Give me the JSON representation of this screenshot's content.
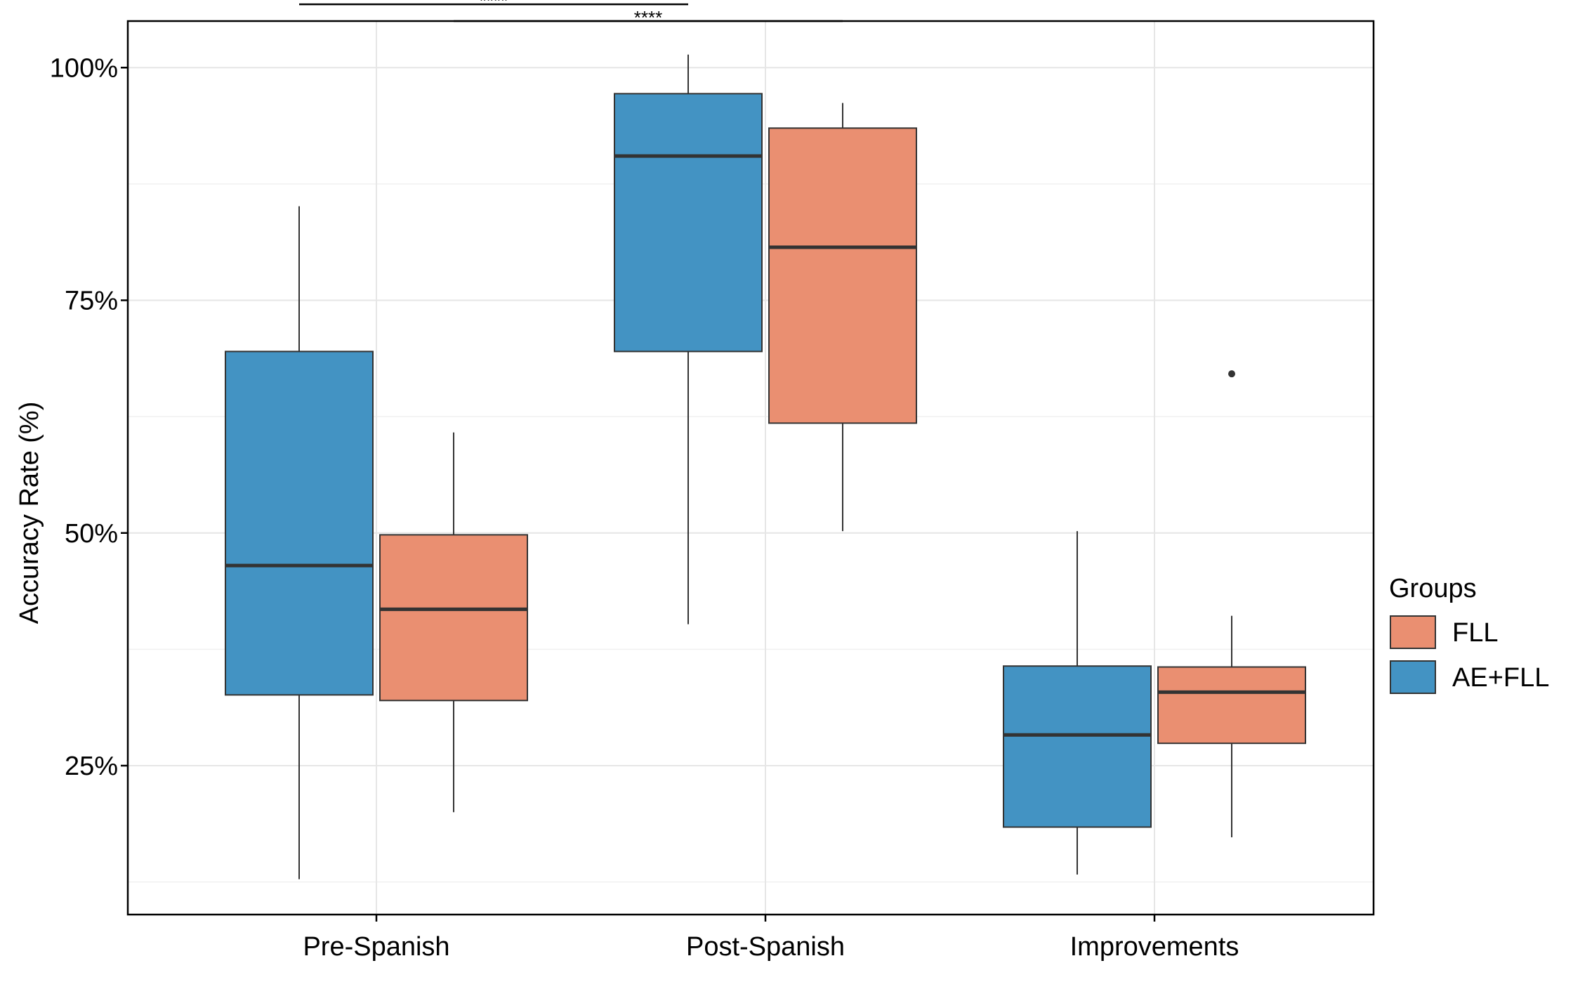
{
  "chart_data": {
    "type": "boxplot",
    "title": "",
    "xlabel": "",
    "ylabel": "Accuracy Rate (%)",
    "ylim": [
      0.09,
      1.05
    ],
    "y_ticks": [
      {
        "value": 0.25,
        "label": "25%"
      },
      {
        "value": 0.5,
        "label": "50%"
      },
      {
        "value": 0.75,
        "label": "75%"
      },
      {
        "value": 1.0,
        "label": "100%"
      }
    ],
    "categories": [
      "Pre-Spanish",
      "Post-Spanish",
      "Improvements"
    ],
    "legend": {
      "title": "Groups",
      "position": "right",
      "entries": [
        {
          "name": "FLL",
          "color": "#EA8F71"
        },
        {
          "name": "AE+FLL",
          "color": "#4393C3"
        }
      ]
    },
    "series": [
      {
        "name": "AE+FLL",
        "color": "#4393C3",
        "boxes": [
          {
            "category": "Pre-Spanish",
            "whisker_low": 0.128,
            "q1": 0.326,
            "median": 0.465,
            "q3": 0.695,
            "whisker_high": 0.851,
            "outliers": []
          },
          {
            "category": "Post-Spanish",
            "whisker_low": 0.402,
            "q1": 0.695,
            "median": 0.905,
            "q3": 0.972,
            "whisker_high": 1.014,
            "outliers": []
          },
          {
            "category": "Improvements",
            "whisker_low": 0.133,
            "q1": 0.184,
            "median": 0.283,
            "q3": 0.357,
            "whisker_high": 0.502,
            "outliers": []
          }
        ]
      },
      {
        "name": "FLL",
        "color": "#EA8F71",
        "boxes": [
          {
            "category": "Pre-Spanish",
            "whisker_low": 0.2,
            "q1": 0.32,
            "median": 0.418,
            "q3": 0.498,
            "whisker_high": 0.608,
            "outliers": []
          },
          {
            "category": "Post-Spanish",
            "whisker_low": 0.502,
            "q1": 0.618,
            "median": 0.807,
            "q3": 0.935,
            "whisker_high": 0.962,
            "outliers": []
          },
          {
            "category": "Improvements",
            "whisker_low": 0.173,
            "q1": 0.274,
            "median": 0.329,
            "q3": 0.356,
            "whisker_high": 0.411,
            "outliers": [
              0.671
            ]
          }
        ]
      }
    ],
    "annotations": [
      {
        "text": "****",
        "from": "Pre-Spanish AE+FLL",
        "to": "Post-Spanish AE+FLL",
        "y": 1.068
      },
      {
        "text": "****",
        "from": "Pre-Spanish FLL",
        "to": "Post-Spanish FLL",
        "y": 1.05
      }
    ],
    "grid": true
  }
}
